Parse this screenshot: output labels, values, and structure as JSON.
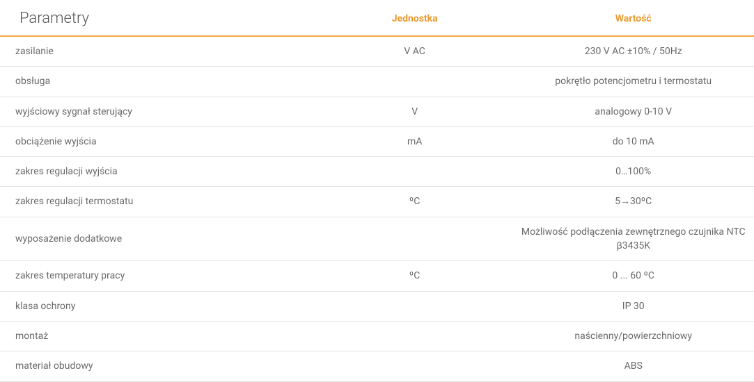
{
  "table": {
    "header": {
      "param": "Parametry",
      "unit": "Jednostka",
      "value": "Wartość"
    },
    "colors": {
      "header_accent": "#e89a2e",
      "header_border": "#f3a73b",
      "row_border": "#e4e4e4",
      "text": "#6a6a6a",
      "title_text": "#555555",
      "background": "#ffffff"
    },
    "typography": {
      "title_fontsize": 22,
      "header_fontsize": 14,
      "body_fontsize": 14,
      "title_weight": 300,
      "header_weight": 700,
      "body_weight": 400
    },
    "column_widths_pct": [
      42,
      26,
      32
    ],
    "rows": [
      {
        "param": "zasilanie",
        "unit": "V AC",
        "value": "230 V AC ±10% / 50Hz"
      },
      {
        "param": "obsługa",
        "unit": "",
        "value": "pokrętło potencjometru i termostatu"
      },
      {
        "param": "wyjściowy sygnał sterujący",
        "unit": "V",
        "value": "analogowy 0-10 V"
      },
      {
        "param": "obciążenie wyjścia",
        "unit": "mA",
        "value": "do 10 mA"
      },
      {
        "param": "zakres regulacji wyjścia",
        "unit": "",
        "value": "0…100%"
      },
      {
        "param": "zakres regulacji termostatu",
        "unit": "ºC",
        "value": "5→30ºC"
      },
      {
        "param": "wyposażenie dodatkowe",
        "unit": "",
        "value": "Możliwość podłączenia zewnętrznego czujnika NTC β3435K"
      },
      {
        "param": "zakres temperatury pracy",
        "unit": "ºC",
        "value": "0 ... 60 ºC"
      },
      {
        "param": "klasa ochrony",
        "unit": "",
        "value": "IP 30"
      },
      {
        "param": "montaż",
        "unit": "",
        "value": "naścienny/powierzchniowy"
      },
      {
        "param": "materiał obudowy",
        "unit": "",
        "value": "ABS"
      }
    ]
  }
}
